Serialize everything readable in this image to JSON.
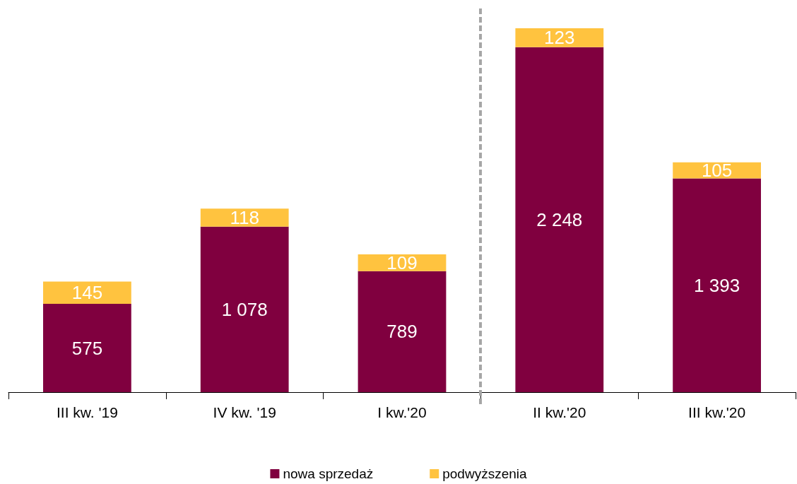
{
  "chart_data": {
    "type": "bar",
    "stacked": true,
    "categories": [
      "III kw. '19",
      "IV kw. '19",
      "I kw.'20",
      "II kw.'20",
      "III kw.'20"
    ],
    "series": [
      {
        "name": "nowa sprzedaż",
        "color": "#80003f",
        "values": [
          575,
          1078,
          789,
          2248,
          1393
        ],
        "value_labels": [
          "575",
          "1 078",
          "789",
          "2 248",
          "1 393"
        ]
      },
      {
        "name": "podwyższenia",
        "color": "#ffc33f",
        "values": [
          145,
          118,
          109,
          123,
          105
        ],
        "value_labels": [
          "145",
          "118",
          "109",
          "123",
          "105"
        ]
      }
    ],
    "legend": "bottom",
    "tick_labels": "x"
  }
}
